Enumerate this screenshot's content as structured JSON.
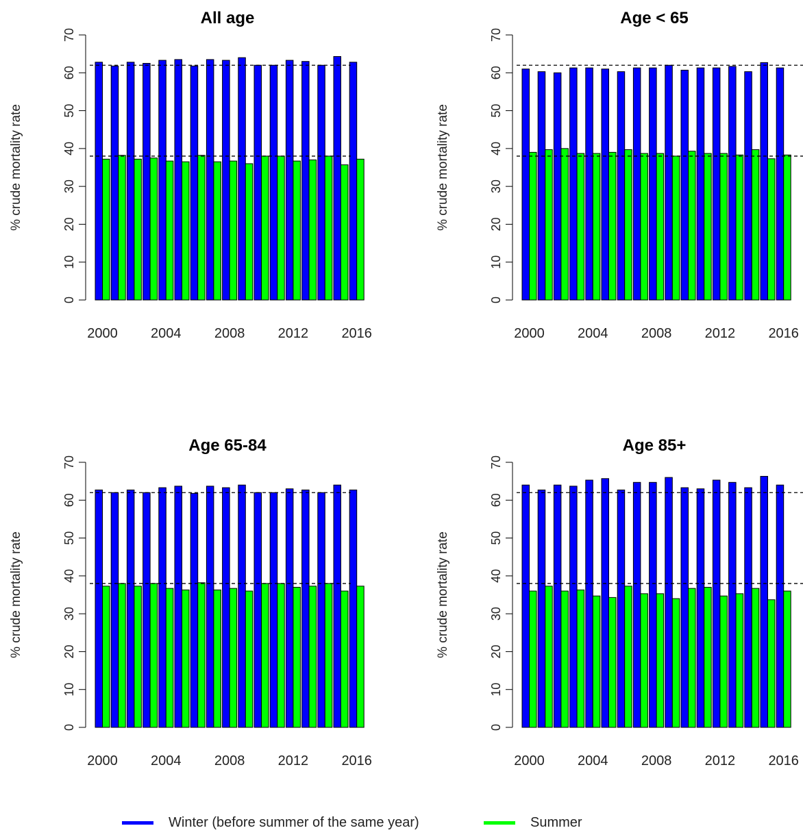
{
  "chart_data": [
    {
      "type": "bar",
      "title": "All age",
      "ylabel": "% crude mortality rate",
      "ylim": [
        0,
        70
      ],
      "yticks": [
        0,
        10,
        20,
        30,
        40,
        50,
        60,
        70
      ],
      "x": [
        2000,
        2001,
        2002,
        2003,
        2004,
        2005,
        2006,
        2007,
        2008,
        2009,
        2010,
        2011,
        2012,
        2013,
        2014,
        2015,
        2016
      ],
      "xtick_labels": [
        "2000",
        "2004",
        "2008",
        "2012",
        "2016"
      ],
      "reference_lines": [
        62,
        38
      ],
      "series": [
        {
          "name": "Winter (before summer of the same year)",
          "color": "#0000ff",
          "values": [
            62.8,
            61.8,
            62.8,
            62.5,
            63.3,
            63.5,
            61.8,
            63.5,
            63.3,
            64.0,
            62.0,
            62.0,
            63.3,
            63.0,
            62.0,
            64.3,
            62.8
          ]
        },
        {
          "name": "Summer",
          "color": "#00ff00",
          "values": [
            37.2,
            38.2,
            37.2,
            37.5,
            36.7,
            36.5,
            38.2,
            36.5,
            36.7,
            36.0,
            38.0,
            38.0,
            36.7,
            37.0,
            38.0,
            35.7,
            37.2
          ]
        }
      ]
    },
    {
      "type": "bar",
      "title": "Age < 65",
      "ylabel": "% crude mortality rate",
      "ylim": [
        0,
        70
      ],
      "yticks": [
        0,
        10,
        20,
        30,
        40,
        50,
        60,
        70
      ],
      "x": [
        2000,
        2001,
        2002,
        2003,
        2004,
        2005,
        2006,
        2007,
        2008,
        2009,
        2010,
        2011,
        2012,
        2013,
        2014,
        2015,
        2016
      ],
      "xtick_labels": [
        "2000",
        "2004",
        "2008",
        "2012",
        "2016"
      ],
      "reference_lines": [
        62,
        38
      ],
      "series": [
        {
          "name": "Winter (before summer of the same year)",
          "color": "#0000ff",
          "values": [
            61.0,
            60.3,
            60.0,
            61.3,
            61.3,
            61.0,
            60.3,
            61.3,
            61.3,
            62.0,
            60.7,
            61.3,
            61.3,
            61.7,
            60.3,
            62.7,
            61.3
          ]
        },
        {
          "name": "Summer",
          "color": "#00ff00",
          "values": [
            39.0,
            39.7,
            40.0,
            38.7,
            38.7,
            39.0,
            39.7,
            38.7,
            38.7,
            38.0,
            39.3,
            38.7,
            38.7,
            38.3,
            39.7,
            37.3,
            38.3
          ]
        }
      ]
    },
    {
      "type": "bar",
      "title": "Age 65-84",
      "ylabel": "% crude mortality rate",
      "ylim": [
        0,
        70
      ],
      "yticks": [
        0,
        10,
        20,
        30,
        40,
        50,
        60,
        70
      ],
      "x": [
        2000,
        2001,
        2002,
        2003,
        2004,
        2005,
        2006,
        2007,
        2008,
        2009,
        2010,
        2011,
        2012,
        2013,
        2014,
        2015,
        2016
      ],
      "xtick_labels": [
        "2000",
        "2004",
        "2008",
        "2012",
        "2016"
      ],
      "reference_lines": [
        62,
        38
      ],
      "series": [
        {
          "name": "Winter (before summer of the same year)",
          "color": "#0000ff",
          "values": [
            62.7,
            62.0,
            62.7,
            62.0,
            63.3,
            63.7,
            61.8,
            63.7,
            63.3,
            64.0,
            62.0,
            62.0,
            63.0,
            62.7,
            62.0,
            64.0,
            62.7
          ]
        },
        {
          "name": "Summer",
          "color": "#00ff00",
          "values": [
            37.3,
            38.0,
            37.3,
            38.0,
            36.7,
            36.3,
            38.2,
            36.3,
            36.7,
            36.0,
            38.0,
            38.0,
            37.0,
            37.3,
            38.0,
            36.0,
            37.3
          ]
        }
      ]
    },
    {
      "type": "bar",
      "title": "Age 85+",
      "ylabel": "% crude mortality rate",
      "ylim": [
        0,
        70
      ],
      "yticks": [
        0,
        10,
        20,
        30,
        40,
        50,
        60,
        70
      ],
      "x": [
        2000,
        2001,
        2002,
        2003,
        2004,
        2005,
        2006,
        2007,
        2008,
        2009,
        2010,
        2011,
        2012,
        2013,
        2014,
        2015,
        2016
      ],
      "xtick_labels": [
        "2000",
        "2004",
        "2008",
        "2012",
        "2016"
      ],
      "reference_lines": [
        62,
        38
      ],
      "series": [
        {
          "name": "Winter (before summer of the same year)",
          "color": "#0000ff",
          "values": [
            64.0,
            62.7,
            64.0,
            63.7,
            65.3,
            65.7,
            62.7,
            64.7,
            64.7,
            66.0,
            63.3,
            63.0,
            65.3,
            64.7,
            63.3,
            66.3,
            64.0
          ]
        },
        {
          "name": "Summer",
          "color": "#00ff00",
          "values": [
            36.0,
            37.3,
            36.0,
            36.3,
            34.7,
            34.3,
            37.3,
            35.3,
            35.3,
            34.0,
            36.7,
            37.0,
            34.7,
            35.3,
            36.7,
            33.7,
            36.0
          ]
        }
      ]
    }
  ],
  "legend": [
    {
      "label": "Winter (before summer of the same year)",
      "color": "#0000ff"
    },
    {
      "label": "Summer",
      "color": "#00ff00"
    }
  ]
}
